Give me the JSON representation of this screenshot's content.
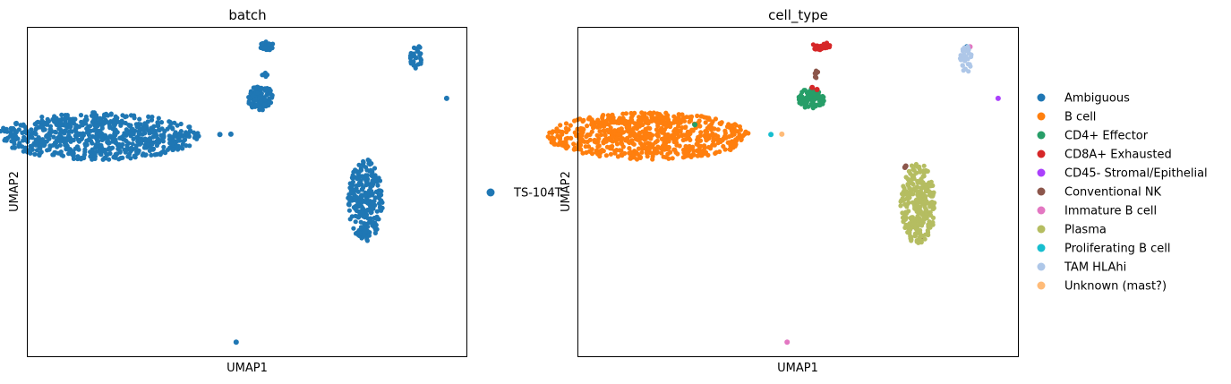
{
  "chart_data": [
    {
      "type": "scatter",
      "title": "batch",
      "xlabel": "UMAP1",
      "ylabel": "UMAP2",
      "xlim": [
        0,
        100
      ],
      "ylim": [
        0,
        100
      ],
      "grid": false,
      "legend_position": "right",
      "series": [
        {
          "name": "TS-104T",
          "color": "#1f77b4",
          "clusters": [
            {
              "cx": 16,
              "cy": 67,
              "rx": 23,
              "ry": 7.2,
              "n": 700,
              "shape": "ellipse"
            },
            {
              "cx": 77,
              "cy": 47.5,
              "rx": 4.0,
              "ry": 12.4,
              "n": 260,
              "shape": "ellipse"
            },
            {
              "cx": 53,
              "cy": 78.5,
              "rx": 3.2,
              "ry": 3.8,
              "n": 90,
              "shape": "ellipse"
            },
            {
              "cx": 54.7,
              "cy": 94.5,
              "rx": 1.9,
              "ry": 1.3,
              "n": 26,
              "shape": "ellipse"
            },
            {
              "cx": 88.5,
              "cy": 91,
              "rx": 1.4,
              "ry": 4.3,
              "n": 30,
              "shape": "ellipse"
            },
            {
              "cx": 54,
              "cy": 85.5,
              "rx": 0.6,
              "ry": 1.3,
              "n": 6,
              "shape": "ellipse"
            }
          ],
          "points": [
            [
              95.5,
              78.5
            ],
            [
              43.8,
              67.5
            ],
            [
              46.3,
              67.6
            ],
            [
              47.5,
              4.3
            ]
          ]
        }
      ]
    },
    {
      "type": "scatter",
      "title": "cell_type",
      "xlabel": "UMAP1",
      "ylabel": "UMAP2",
      "xlim": [
        0,
        100
      ],
      "ylim": [
        0,
        100
      ],
      "grid": false,
      "legend_position": "right",
      "series": [
        {
          "name": "Ambiguous",
          "color": "#1f77b4",
          "clusters": [],
          "points": [
            [
              88.4,
              94.2
            ]
          ]
        },
        {
          "name": "B cell",
          "color": "#ff7f0e",
          "clusters": [
            {
              "cx": 16,
              "cy": 67,
              "rx": 23,
              "ry": 7.2,
              "n": 700,
              "shape": "ellipse"
            }
          ],
          "points": []
        },
        {
          "name": "CD4+ Effector",
          "color": "#279e68",
          "clusters": [
            {
              "cx": 53,
              "cy": 78.5,
              "rx": 3.2,
              "ry": 3.2,
              "n": 80,
              "shape": "ellipse"
            }
          ],
          "points": [
            [
              26.5,
              70.5
            ]
          ]
        },
        {
          "name": "CD8A+ Exhausted",
          "color": "#d62728",
          "clusters": [
            {
              "cx": 55.3,
              "cy": 94.4,
              "rx": 2.1,
              "ry": 1.2,
              "n": 24,
              "shape": "ellipse"
            }
          ],
          "points": [
            [
              53.2,
              81.8
            ],
            [
              54.3,
              81.2
            ]
          ]
        },
        {
          "name": "CD45- Stromal/Epithelial",
          "color": "#aa40fc",
          "clusters": [],
          "points": [
            [
              95.5,
              78.5
            ]
          ]
        },
        {
          "name": "Conventional NK",
          "color": "#8c564b",
          "clusters": [
            {
              "cx": 54.2,
              "cy": 85.8,
              "rx": 0.5,
              "ry": 1.3,
              "n": 6,
              "shape": "ellipse"
            }
          ],
          "points": [
            [
              74.3,
              57.5
            ],
            [
              74.5,
              57.9
            ],
            [
              78,
              35.5
            ]
          ]
        },
        {
          "name": "Immature B cell",
          "color": "#e377c2",
          "clusters": [],
          "points": [
            [
              47.5,
              4.3
            ],
            [
              89.1,
              94.2
            ]
          ]
        },
        {
          "name": "Plasma",
          "color": "#b5bd61",
          "clusters": [
            {
              "cx": 77.3,
              "cy": 46.5,
              "rx": 4.0,
              "ry": 12.4,
              "n": 260,
              "shape": "ellipse"
            }
          ],
          "points": []
        },
        {
          "name": "Proliferating B cell",
          "color": "#17becf",
          "clusters": [],
          "points": [
            [
              43.8,
              67.5
            ]
          ]
        },
        {
          "name": "TAM HLAhi",
          "color": "#aec7e8",
          "clusters": [
            {
              "cx": 88.2,
              "cy": 90.5,
              "rx": 1.4,
              "ry": 4.5,
              "n": 30,
              "shape": "ellipse"
            }
          ],
          "points": []
        },
        {
          "name": "Unknown (mast?)",
          "color": "#ffbb78",
          "clusters": [],
          "points": [
            [
              46.3,
              67.6
            ]
          ]
        }
      ]
    }
  ]
}
